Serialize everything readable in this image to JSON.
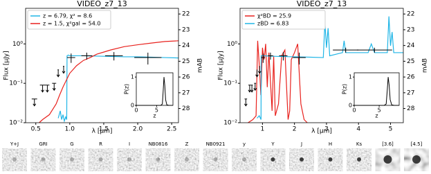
{
  "chart_data": [
    {
      "type": "line",
      "title": "VIDEO_z7_13",
      "xlabel": "λ [μm]",
      "ylabel": "Flux [μJy]",
      "y2label": "mAB",
      "log_y": true,
      "legend": "upper left",
      "xlim": [
        0.35,
        2.6
      ],
      "xticks": [
        0.5,
        {
          "value": 1.0,
          "label": "1.0"
        },
        1.5,
        {
          "value": 2.0,
          "label": "2.0"
        },
        2.5
      ],
      "ylim": [
        0.01,
        8
      ],
      "yticks": [
        {
          "value": 0.01,
          "label": "10⁻²"
        },
        {
          "value": 0.1,
          "label": "10⁻¹"
        },
        {
          "value": 1,
          "label": "10⁰"
        }
      ],
      "y2lim": [
        28.9,
        21.64
      ],
      "y2ticks": [
        22,
        23,
        24,
        25,
        26,
        27,
        28
      ],
      "series": [
        {
          "name": "z = 6.79, χ² = 8.6",
          "color": "#1fb5e6",
          "x": [
            0.83,
            0.86,
            0.88,
            0.9,
            0.92,
            0.94,
            0.955,
            0.96,
            0.98,
            1.0,
            1.1,
            1.2,
            1.4,
            1.6,
            1.8,
            2.0,
            2.2,
            2.4,
            2.6
          ],
          "values": [
            0.013,
            0.02,
            0.012,
            0.016,
            0.011,
            0.014,
            0.012,
            0.5,
            0.52,
            0.5,
            0.5,
            0.5,
            0.49,
            0.48,
            0.47,
            0.47,
            0.46,
            0.45,
            0.44
          ]
        },
        {
          "name": "z = 1.5, χ²gal = 54.0",
          "color": "#e8211d",
          "x": [
            0.55,
            0.6,
            0.7,
            0.8,
            0.85,
            0.9,
            0.95,
            1.0,
            1.1,
            1.2,
            1.3,
            1.4,
            1.5,
            1.6,
            1.8,
            2.0,
            2.2,
            2.4,
            2.6
          ],
          "values": [
            0.01,
            0.012,
            0.016,
            0.03,
            0.05,
            0.08,
            0.12,
            0.18,
            0.28,
            0.38,
            0.45,
            0.55,
            0.62,
            0.7,
            0.85,
            0.95,
            1.05,
            1.15,
            1.2
          ]
        }
      ],
      "points": {
        "x": [
          1.02,
          1.25,
          1.65,
          2.15
        ],
        "values": [
          0.45,
          0.5,
          0.5,
          0.45
        ],
        "xerr": [
          0.06,
          0.08,
          0.13,
          0.2
        ],
        "yerr": [
          0.12,
          0.1,
          0.12,
          0.15
        ]
      },
      "limits": {
        "x": [
          0.48,
          0.6,
          0.67,
          0.77,
          0.83,
          0.91
        ],
        "values": [
          0.04,
          0.09,
          0.09,
          0.1,
          0.22,
          0.27
        ],
        "xerr": [
          0.04,
          0.04,
          0.03,
          0.03,
          0.01,
          0.01
        ]
      },
      "inset": {
        "xlabel": "z",
        "ylabel": "P(z)",
        "xlim": [
          0,
          9
        ],
        "ylim": [
          0,
          1.15
        ],
        "xticks": [
          0,
          5
        ],
        "yticks": [
          0,
          1
        ],
        "x": [
          0,
          1,
          2,
          3,
          4,
          5,
          6,
          6.4,
          6.6,
          6.8,
          7.0,
          7.2,
          7.5,
          8,
          9
        ],
        "values": [
          0,
          0,
          0,
          0,
          0,
          0,
          0,
          0.05,
          0.5,
          1.0,
          0.7,
          0.2,
          0.02,
          0,
          0
        ]
      }
    },
    {
      "type": "line",
      "title": "VIDEO_z7_13",
      "xlabel": "λ [μm]",
      "ylabel": "Flux [μJy]",
      "y2label": "mAB",
      "log_y": true,
      "legend": "upper left",
      "xlim": [
        0.3,
        5.4
      ],
      "xticks": [
        1,
        2,
        3,
        4,
        5
      ],
      "ylim": [
        0.01,
        8
      ],
      "yticks": [
        {
          "value": 0.01,
          "label": "10⁻²"
        },
        {
          "value": 0.1,
          "label": "10⁻¹"
        },
        {
          "value": 1,
          "label": "10⁰"
        }
      ],
      "y2lim": [
        28.9,
        21.64
      ],
      "y2ticks": [
        22,
        23,
        24,
        25,
        26,
        27,
        28
      ],
      "series": [
        {
          "name": "χ²BD = 25.9",
          "color": "#e8211d",
          "x": [
            0.55,
            0.7,
            0.8,
            0.85,
            0.9,
            0.95,
            1.0,
            1.05,
            1.1,
            1.15,
            1.2,
            1.3,
            1.35,
            1.4,
            1.5,
            1.6,
            1.7,
            1.8,
            1.85,
            1.9,
            2.0,
            2.1,
            2.2,
            2.3,
            2.4
          ],
          "values": [
            0.01,
            0.012,
            0.015,
            1.2,
            0.3,
            0.05,
            0.8,
            0.4,
            1.0,
            0.08,
            0.6,
            0.02,
            0.5,
            0.015,
            0.03,
            0.5,
            0.7,
            0.012,
            0.02,
            0.4,
            0.6,
            1.0,
            0.03,
            0.012,
            0.01
          ]
        },
        {
          "name": "zBD = 6.83",
          "color": "#1fb5e6",
          "x": [
            0.83,
            0.9,
            0.955,
            0.96,
            1.0,
            1.5,
            2.0,
            2.5,
            2.9,
            2.95,
            3.0,
            3.05,
            3.1,
            3.5,
            3.55,
            3.6,
            3.7,
            4.0,
            4.3,
            4.4,
            4.5,
            4.9,
            4.95,
            5.0,
            5.05,
            5.1,
            5.4
          ],
          "values": [
            0.013,
            0.015,
            0.012,
            0.5,
            0.5,
            0.48,
            0.47,
            0.46,
            0.45,
            3.5,
            0.8,
            2.5,
            0.5,
            0.6,
            1.2,
            0.6,
            0.6,
            0.6,
            0.6,
            1.0,
            0.6,
            0.6,
            5.0,
            0.9,
            2.0,
            0.6,
            0.6
          ]
        }
      ],
      "points": {
        "x": [
          1.02,
          1.25,
          1.65,
          2.15,
          3.6,
          4.5
        ],
        "values": [
          0.45,
          0.5,
          0.5,
          0.45,
          0.7,
          0.7
        ],
        "xerr": [
          0.06,
          0.08,
          0.13,
          0.2,
          0.4,
          0.55
        ],
        "yerr": [
          0.12,
          0.1,
          0.12,
          0.15,
          0.1,
          0.1
        ]
      },
      "limits": {
        "x": [
          0.48,
          0.6,
          0.67,
          0.77,
          0.83,
          0.91
        ],
        "values": [
          0.04,
          0.09,
          0.09,
          0.1,
          0.22,
          0.27
        ],
        "xerr": [
          0.04,
          0.04,
          0.03,
          0.03,
          0.01,
          0.01
        ]
      },
      "inset": {
        "xlabel": "z",
        "ylabel": "P(z)",
        "xlim": [
          0,
          9
        ],
        "ylim": [
          0,
          1.15
        ],
        "xticks": [
          0,
          5
        ],
        "yticks": [
          0,
          1
        ],
        "x": [
          0,
          1,
          2,
          3,
          4,
          5,
          6,
          6.4,
          6.6,
          6.8,
          7.0,
          7.2,
          7.5,
          8,
          9
        ],
        "values": [
          0,
          0,
          0,
          0,
          0,
          0,
          0,
          0.05,
          0.5,
          1.0,
          0.7,
          0.2,
          0.02,
          0,
          0
        ]
      }
    }
  ],
  "thumbnails": [
    "Y+J",
    "GRI",
    "G",
    "R",
    "I",
    "NB0816",
    "Z",
    "NB0921",
    "y",
    "Y",
    "J",
    "H",
    "Ks",
    "[3.6]",
    "[4.5]"
  ]
}
